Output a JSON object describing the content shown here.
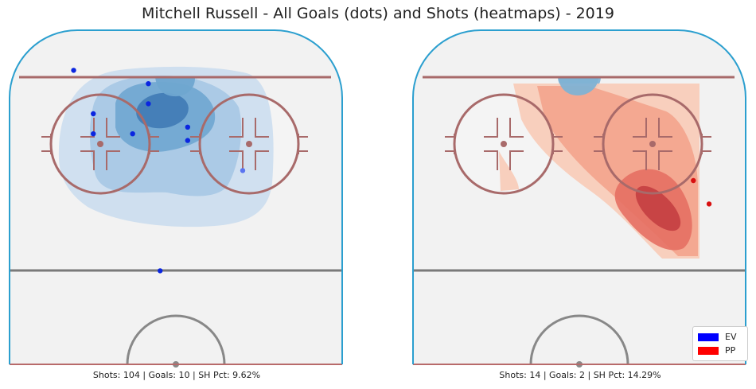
{
  "chart_data": {
    "type": "scatter",
    "title": "Mitchell Russell - All Goals (dots) and Shots (heatmaps) - 2019",
    "legend": {
      "position": "bottom-right",
      "entries": [
        {
          "label": "EV",
          "color": "#0000ff"
        },
        {
          "label": "PP",
          "color": "#ff0000"
        }
      ]
    },
    "panels": [
      {
        "strength": "EV",
        "caption": "Shots: 104 | Goals: 10 | SH Pct: 9.62%",
        "heatmap_colors": [
          "#c9dcee",
          "#a6c8e4",
          "#6fa6d0",
          "#3d78b3"
        ],
        "goals": [
          {
            "x": -26,
            "y": 88,
            "color": "#0b26e0"
          },
          {
            "x": -7,
            "y": 84,
            "color": "#0b26e0"
          },
          {
            "x": -7,
            "y": 78,
            "color": "#0b26e0"
          },
          {
            "x": -21,
            "y": 75,
            "color": "#0b26e0"
          },
          {
            "x": -21,
            "y": 69,
            "color": "#0b26e0"
          },
          {
            "x": -11,
            "y": 69,
            "color": "#0b26e0"
          },
          {
            "x": 3,
            "y": 71,
            "color": "#0b26e0"
          },
          {
            "x": 3,
            "y": 67,
            "color": "#0b26e0"
          },
          {
            "x": 17,
            "y": 58,
            "color": "#5a74f0"
          },
          {
            "x": -4,
            "y": 28,
            "color": "#0b26e0"
          }
        ]
      },
      {
        "strength": "PP",
        "caption": "Shots: 14 | Goals: 2 | SH Pct: 14.29%",
        "heatmap_colors": [
          "#f8cbb7",
          "#f3a38c",
          "#e66f63",
          "#c0383d"
        ],
        "goals": [
          {
            "x": 29,
            "y": 55,
            "color": "#d81010"
          },
          {
            "x": 33,
            "y": 48,
            "color": "#d81010"
          }
        ]
      }
    ]
  }
}
